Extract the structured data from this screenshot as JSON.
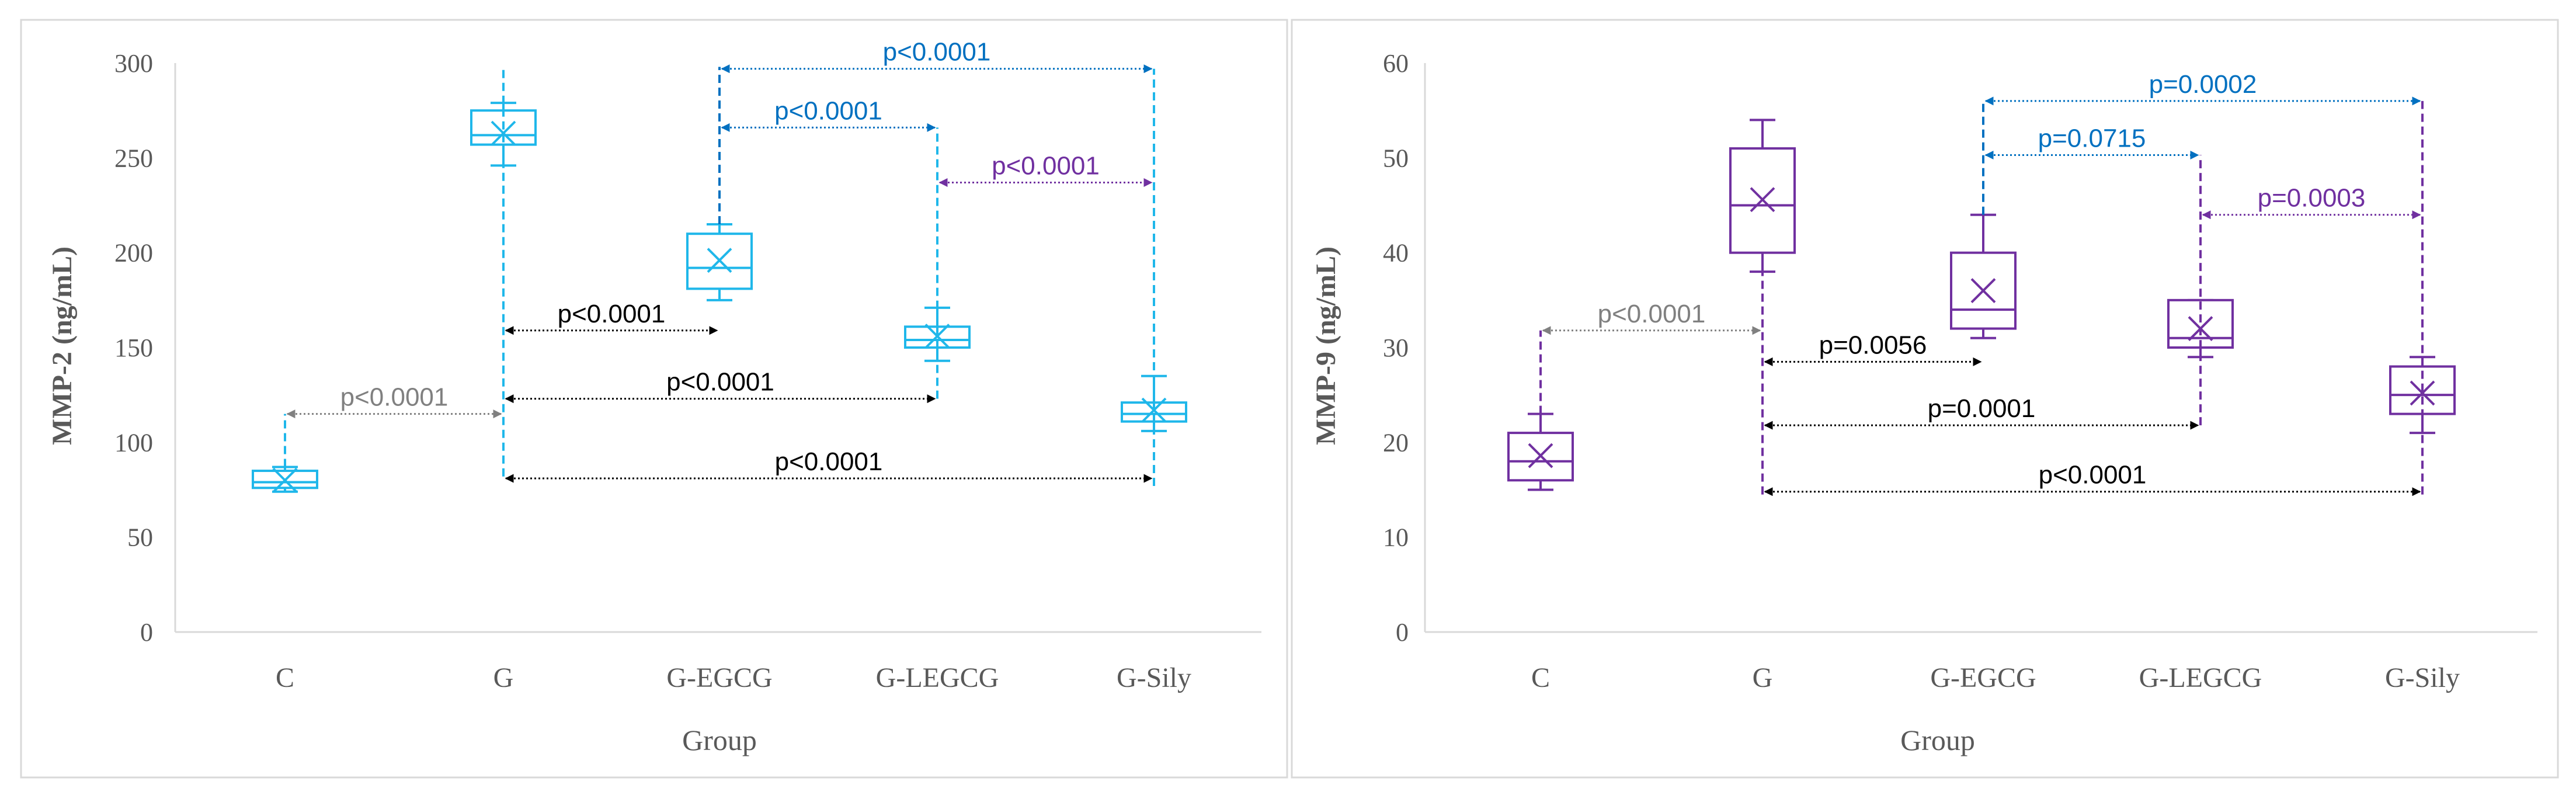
{
  "chart_data": [
    {
      "type": "box",
      "ylabel": "MMP-2 (ng/mL)",
      "xlabel": "Group",
      "ylim": [
        0,
        300
      ],
      "yticks": [
        0,
        50,
        100,
        150,
        200,
        250,
        300
      ],
      "ytick_labels": [
        "0",
        "50",
        "100",
        "150",
        "200",
        "250",
        "300"
      ],
      "categories": [
        "C",
        "G",
        "G-EGCG",
        "G-LEGCG",
        "G-Sily"
      ],
      "box_color": "#1fb7ea",
      "boxes": [
        {
          "min": 74,
          "q1": 76,
          "median": 79,
          "q3": 85,
          "max": 87,
          "mean": 80
        },
        {
          "min": 246,
          "q1": 257,
          "median": 262,
          "q3": 275,
          "max": 279,
          "mean": 263
        },
        {
          "min": 175,
          "q1": 181,
          "median": 192,
          "q3": 210,
          "max": 215,
          "mean": 196
        },
        {
          "min": 143,
          "q1": 150,
          "median": 154,
          "q3": 161,
          "max": 171,
          "mean": 156
        },
        {
          "min": 106,
          "q1": 111,
          "median": 115,
          "q3": 121,
          "max": 135,
          "mean": 117
        }
      ],
      "comparisons": [
        {
          "from": 0,
          "to": 1,
          "y": 115,
          "label": "p<0.0001",
          "color": "#808080",
          "line_from": 87,
          "line_to": 115
        },
        {
          "from": 1,
          "to": 2,
          "y": 159,
          "label": "p<0.0001",
          "color": "#000000",
          "line_from": 82,
          "line_to": 298
        },
        {
          "from": 1,
          "to": 3,
          "y": 123,
          "label": "p<0.0001",
          "color": "#000000"
        },
        {
          "from": 1,
          "to": 4,
          "y": 81,
          "label": "p<0.0001",
          "color": "#000000"
        },
        {
          "from": 2,
          "to": 3,
          "y": 266,
          "label": "p<0.0001",
          "color": "#0070c0",
          "line_from": 215,
          "line_to": 298
        },
        {
          "from": 2,
          "to": 4,
          "y": 297,
          "label": "p<0.0001",
          "color": "#0070c0"
        },
        {
          "from": 3,
          "to": 4,
          "y": 237,
          "label": "p<0.0001",
          "color": "#7030a0",
          "line_from": 123,
          "line_to": 266
        }
      ],
      "vertical_lines": [
        {
          "category": 4,
          "from": 77,
          "to": 297
        }
      ]
    },
    {
      "type": "box",
      "ylabel": "MMP-9 (ng/mL)",
      "xlabel": "Group",
      "ylim": [
        0,
        60
      ],
      "yticks": [
        0,
        10,
        20,
        30,
        40,
        50,
        60
      ],
      "ytick_labels": [
        "0",
        "10",
        "20",
        "30",
        "40",
        "50",
        "60"
      ],
      "categories": [
        "C",
        "G",
        "G-EGCG",
        "G-LEGCG",
        "G-Sily"
      ],
      "box_color": "#7030a0",
      "boxes": [
        {
          "min": 15,
          "q1": 16,
          "median": 18,
          "q3": 21,
          "max": 23,
          "mean": 18.6
        },
        {
          "min": 38,
          "q1": 40,
          "median": 45,
          "q3": 51,
          "max": 54,
          "mean": 45.6
        },
        {
          "min": 31,
          "q1": 32,
          "median": 34,
          "q3": 40,
          "max": 44,
          "mean": 36
        },
        {
          "min": 29,
          "q1": 30,
          "median": 31,
          "q3": 35,
          "max": 35,
          "mean": 32
        },
        {
          "min": 21,
          "q1": 23,
          "median": 25,
          "q3": 28,
          "max": 29,
          "mean": 25.2
        }
      ],
      "comparisons": [
        {
          "from": 0,
          "to": 1,
          "y": 31.8,
          "label": "p<0.0001",
          "color": "#808080",
          "line_from": 23,
          "line_to": 31.8
        },
        {
          "from": 1,
          "to": 2,
          "y": 28.5,
          "label": "p=0.0056",
          "color": "#000000",
          "line_from": 14.5,
          "line_to": 38
        },
        {
          "from": 1,
          "to": 3,
          "y": 21.8,
          "label": "p=0.0001",
          "color": "#000000"
        },
        {
          "from": 1,
          "to": 4,
          "y": 14.8,
          "label": "p<0.0001",
          "color": "#000000"
        },
        {
          "from": 2,
          "to": 3,
          "y": 50.3,
          "label": "p=0.0715",
          "color": "#0070c0",
          "line_from": 44,
          "line_to": 56
        },
        {
          "from": 2,
          "to": 4,
          "y": 56,
          "label": "p=0.0002",
          "color": "#0070c0"
        },
        {
          "from": 3,
          "to": 4,
          "y": 44,
          "label": "p=0.0003",
          "color": "#7030a0",
          "line_from": 21.8,
          "line_to": 50.3
        }
      ],
      "vertical_lines": [
        {
          "category": 4,
          "from": 14.5,
          "to": 56
        }
      ]
    }
  ]
}
